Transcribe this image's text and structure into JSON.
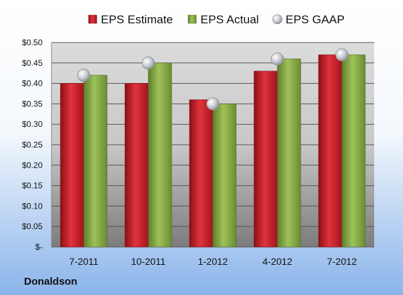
{
  "company": "Donaldson",
  "colors": {
    "estimate": "#c81e28",
    "actual": "#8cad4a",
    "gaap": "#c4c8cc",
    "background_top": "#ffffff",
    "background_bottom": "#8ab4ea"
  },
  "chart_data": {
    "type": "bar",
    "categories": [
      "7-2011",
      "10-2011",
      "1-2012",
      "4-2012",
      "7-2012"
    ],
    "series": [
      {
        "name": "EPS Estimate",
        "kind": "bar",
        "values": [
          0.4,
          0.4,
          0.36,
          0.43,
          0.47
        ]
      },
      {
        "name": "EPS Actual",
        "kind": "bar",
        "values": [
          0.42,
          0.45,
          0.35,
          0.46,
          0.47
        ]
      },
      {
        "name": "EPS GAAP",
        "kind": "marker",
        "values": [
          0.42,
          0.45,
          0.35,
          0.46,
          0.47
        ]
      }
    ],
    "ylim": [
      0,
      0.5
    ],
    "yticks": [
      0,
      0.05,
      0.1,
      0.15,
      0.2,
      0.25,
      0.3,
      0.35,
      0.4,
      0.45,
      0.5
    ],
    "ytick_labels": [
      "$-",
      "$0.05",
      "$0.10",
      "$0.15",
      "$0.20",
      "$0.25",
      "$0.30",
      "$0.35",
      "$0.40",
      "$0.45",
      "$0.50"
    ],
    "grid": true,
    "legend": "top"
  }
}
